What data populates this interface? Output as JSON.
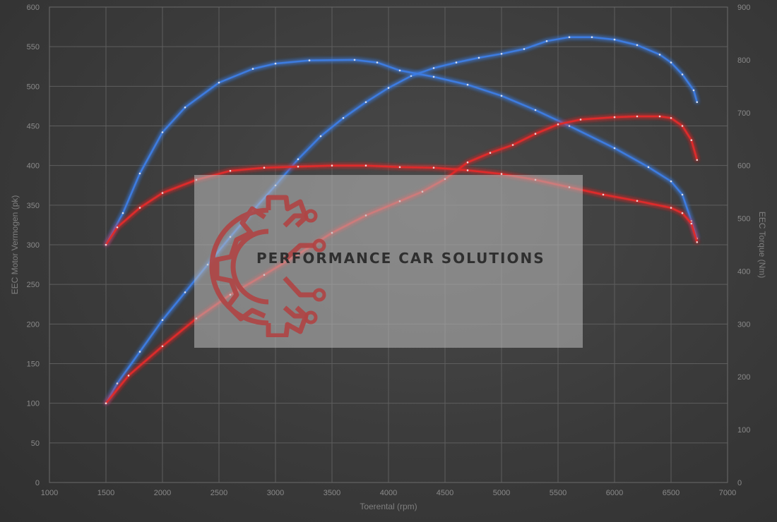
{
  "chart_data": {
    "type": "line",
    "xlabel": "Toerental (rpm)",
    "ylabel_left": "EEC Motor Vermogen (pk)",
    "ylabel_right": "EEC Torque (Nm)",
    "xlim": [
      1000,
      7000
    ],
    "ylim_left": [
      0,
      600
    ],
    "ylim_right": [
      0,
      900
    ],
    "x_ticks": [
      1000,
      1500,
      2000,
      2500,
      3000,
      3500,
      4000,
      4500,
      5000,
      5500,
      6000,
      6500,
      7000
    ],
    "y_ticks_left": [
      0,
      50,
      100,
      150,
      200,
      250,
      300,
      350,
      400,
      450,
      500,
      550,
      600
    ],
    "y_ticks_right": [
      0,
      100,
      200,
      300,
      400,
      500,
      600,
      700,
      800,
      900
    ],
    "grid": true,
    "series": [
      {
        "axis": "left",
        "color": "#3d7be0",
        "points": [
          [
            1500,
            100
          ],
          [
            1600,
            125
          ],
          [
            1800,
            165
          ],
          [
            2000,
            205
          ],
          [
            2200,
            240
          ],
          [
            2400,
            275
          ],
          [
            2600,
            310
          ],
          [
            2800,
            343
          ],
          [
            3000,
            375
          ],
          [
            3200,
            408
          ],
          [
            3400,
            437
          ],
          [
            3600,
            460
          ],
          [
            3800,
            480
          ],
          [
            4000,
            498
          ],
          [
            4200,
            513
          ],
          [
            4400,
            523
          ],
          [
            4600,
            530
          ],
          [
            4800,
            536
          ],
          [
            5000,
            541
          ],
          [
            5200,
            547
          ],
          [
            5400,
            557
          ],
          [
            5600,
            562
          ],
          [
            5800,
            562
          ],
          [
            6000,
            559
          ],
          [
            6200,
            552
          ],
          [
            6400,
            540
          ],
          [
            6500,
            530
          ],
          [
            6600,
            515
          ],
          [
            6700,
            495
          ],
          [
            6730,
            480
          ]
        ]
      },
      {
        "axis": "right",
        "color": "#3d7be0",
        "points": [
          [
            1500,
            450
          ],
          [
            1650,
            510
          ],
          [
            1800,
            585
          ],
          [
            2000,
            663
          ],
          [
            2200,
            710
          ],
          [
            2500,
            757
          ],
          [
            2800,
            783
          ],
          [
            3000,
            793
          ],
          [
            3300,
            799
          ],
          [
            3700,
            800
          ],
          [
            3900,
            795
          ],
          [
            4100,
            780
          ],
          [
            4400,
            768
          ],
          [
            4700,
            753
          ],
          [
            5000,
            732
          ],
          [
            5300,
            705
          ],
          [
            5600,
            675
          ],
          [
            6000,
            633
          ],
          [
            6300,
            597
          ],
          [
            6500,
            570
          ],
          [
            6600,
            545
          ],
          [
            6680,
            495
          ],
          [
            6730,
            462
          ]
        ]
      },
      {
        "axis": "left",
        "color": "#e02a2a",
        "points": [
          [
            1500,
            100
          ],
          [
            1700,
            135
          ],
          [
            2000,
            172
          ],
          [
            2300,
            207
          ],
          [
            2600,
            237
          ],
          [
            2900,
            262
          ],
          [
            3200,
            288
          ],
          [
            3500,
            315
          ],
          [
            3800,
            337
          ],
          [
            4100,
            355
          ],
          [
            4300,
            367
          ],
          [
            4500,
            383
          ],
          [
            4700,
            404
          ],
          [
            4900,
            416
          ],
          [
            5100,
            426
          ],
          [
            5300,
            440
          ],
          [
            5500,
            452
          ],
          [
            5700,
            458
          ],
          [
            6000,
            461
          ],
          [
            6200,
            462
          ],
          [
            6400,
            462
          ],
          [
            6500,
            460
          ],
          [
            6600,
            450
          ],
          [
            6680,
            432
          ],
          [
            6730,
            407
          ]
        ]
      },
      {
        "axis": "right",
        "color": "#e02a2a",
        "points": [
          [
            1500,
            450
          ],
          [
            1600,
            483
          ],
          [
            1800,
            520
          ],
          [
            2000,
            548
          ],
          [
            2300,
            573
          ],
          [
            2600,
            590
          ],
          [
            2900,
            596
          ],
          [
            3200,
            598
          ],
          [
            3500,
            600
          ],
          [
            3800,
            600
          ],
          [
            4100,
            597
          ],
          [
            4400,
            596
          ],
          [
            4700,
            591
          ],
          [
            5000,
            584
          ],
          [
            5300,
            573
          ],
          [
            5600,
            559
          ],
          [
            5900,
            545
          ],
          [
            6200,
            533
          ],
          [
            6500,
            520
          ],
          [
            6600,
            510
          ],
          [
            6680,
            490
          ],
          [
            6730,
            455
          ]
        ]
      }
    ]
  },
  "watermark": {
    "text": "PERFORMANCE CAR SOLUTIONS",
    "icon": "gear-circuit-logo-icon"
  }
}
